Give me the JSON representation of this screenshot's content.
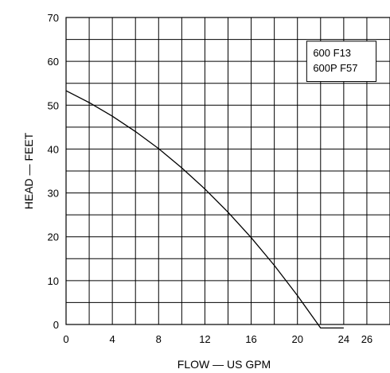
{
  "chart_data": {
    "type": "line",
    "xlabel": "FLOW — US GPM",
    "ylabel": "HEAD — FEET",
    "xlim": [
      0,
      28
    ],
    "ylim": [
      0,
      70
    ],
    "x_ticks": [
      "0",
      "4",
      "8",
      "12",
      "16",
      "20",
      "24",
      "26"
    ],
    "y_ticks": [
      "0",
      "10",
      "20",
      "30",
      "40",
      "50",
      "60",
      "70"
    ],
    "grid": true,
    "annotation_lines": [
      "600 F13",
      "600P F57"
    ],
    "series": [
      {
        "x": [
          0,
          2,
          4,
          6,
          8,
          10,
          12,
          14,
          16,
          18,
          20,
          22,
          24
        ],
        "y": [
          53.3,
          50.6,
          47.5,
          44,
          40.1,
          35.7,
          30.9,
          25.6,
          19.8,
          13.5,
          6.6,
          -0.8,
          -0.8
        ]
      }
    ]
  }
}
